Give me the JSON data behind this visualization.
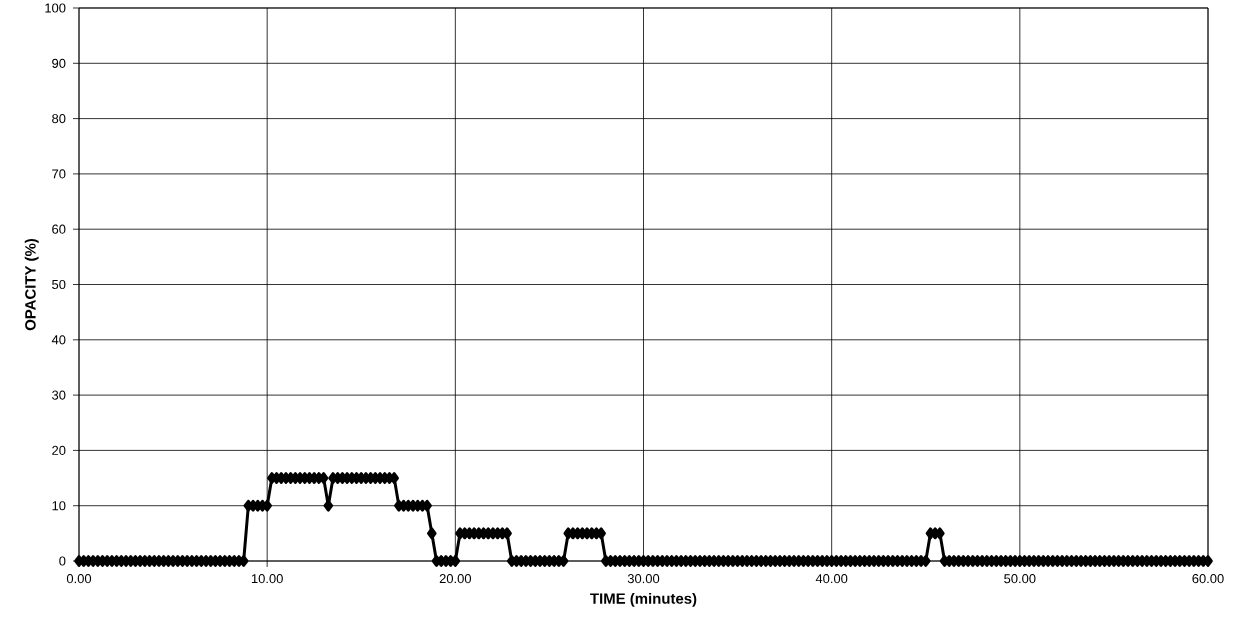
{
  "chart_data": {
    "type": "line",
    "xlabel": "TIME (minutes)",
    "ylabel": "OPACITY (%)",
    "xlim": [
      0,
      60
    ],
    "ylim": [
      0,
      100
    ],
    "xticks": [
      {
        "value": 0,
        "label": "0.00"
      },
      {
        "value": 10,
        "label": "10.00"
      },
      {
        "value": 20,
        "label": "20.00"
      },
      {
        "value": 30,
        "label": "30.00"
      },
      {
        "value": 40,
        "label": "40.00"
      },
      {
        "value": 50,
        "label": "50.00"
      },
      {
        "value": 60,
        "label": "60.00"
      }
    ],
    "yticks": [
      0,
      10,
      20,
      30,
      40,
      50,
      60,
      70,
      80,
      90,
      100
    ],
    "grid": true,
    "marker": "diamond",
    "line_style": "solid",
    "series": [
      {
        "color": "#000000",
        "x": [
          0,
          0.25,
          0.5,
          0.75,
          1,
          1.25,
          1.5,
          1.75,
          2,
          2.25,
          2.5,
          2.75,
          3,
          3.25,
          3.5,
          3.75,
          4,
          4.25,
          4.5,
          4.75,
          5,
          5.25,
          5.5,
          5.75,
          6,
          6.25,
          6.5,
          6.75,
          7,
          7.25,
          7.5,
          7.75,
          8,
          8.25,
          8.5,
          8.75,
          9,
          9.25,
          9.5,
          9.75,
          10,
          10.25,
          10.5,
          10.75,
          11,
          11.25,
          11.5,
          11.75,
          12,
          12.25,
          12.5,
          12.75,
          13,
          13.25,
          13.5,
          13.75,
          14,
          14.25,
          14.5,
          14.75,
          15,
          15.25,
          15.5,
          15.75,
          16,
          16.25,
          16.5,
          16.75,
          17,
          17.25,
          17.5,
          17.75,
          18,
          18.25,
          18.5,
          18.75,
          19,
          19.25,
          19.5,
          19.75,
          20,
          20.25,
          20.5,
          20.75,
          21,
          21.25,
          21.5,
          21.75,
          22,
          22.25,
          22.5,
          22.75,
          23,
          23.25,
          23.5,
          23.75,
          24,
          24.25,
          24.5,
          24.75,
          25,
          25.25,
          25.5,
          25.75,
          26,
          26.25,
          26.5,
          26.75,
          27,
          27.25,
          27.5,
          27.75,
          28,
          28.25,
          28.5,
          28.75,
          29,
          29.25,
          29.5,
          29.75,
          30,
          30.25,
          30.5,
          30.75,
          31,
          31.25,
          31.5,
          31.75,
          32,
          32.25,
          32.5,
          32.75,
          33,
          33.25,
          33.5,
          33.75,
          34,
          34.25,
          34.5,
          34.75,
          35,
          35.25,
          35.5,
          35.75,
          36,
          36.25,
          36.5,
          36.75,
          37,
          37.25,
          37.5,
          37.75,
          38,
          38.25,
          38.5,
          38.75,
          39,
          39.25,
          39.5,
          39.75,
          40,
          40.25,
          40.5,
          40.75,
          41,
          41.25,
          41.5,
          41.75,
          42,
          42.25,
          42.5,
          42.75,
          43,
          43.25,
          43.5,
          43.75,
          44,
          44.25,
          44.5,
          44.75,
          45,
          45.25,
          45.5,
          45.75,
          46,
          46.25,
          46.5,
          46.75,
          47,
          47.25,
          47.5,
          47.75,
          48,
          48.25,
          48.5,
          48.75,
          49,
          49.25,
          49.5,
          49.75,
          50,
          50.25,
          50.5,
          50.75,
          51,
          51.25,
          51.5,
          51.75,
          52,
          52.25,
          52.5,
          52.75,
          53,
          53.25,
          53.5,
          53.75,
          54,
          54.25,
          54.5,
          54.75,
          55,
          55.25,
          55.5,
          55.75,
          56,
          56.25,
          56.5,
          56.75,
          57,
          57.25,
          57.5,
          57.75,
          58,
          58.25,
          58.5,
          58.75,
          59,
          59.25,
          59.5,
          59.75,
          60
        ],
        "values": [
          0,
          0,
          0,
          0,
          0,
          0,
          0,
          0,
          0,
          0,
          0,
          0,
          0,
          0,
          0,
          0,
          0,
          0,
          0,
          0,
          0,
          0,
          0,
          0,
          0,
          0,
          0,
          0,
          0,
          0,
          0,
          0,
          0,
          0,
          0,
          0,
          10,
          10,
          10,
          10,
          10,
          15,
          15,
          15,
          15,
          15,
          15,
          15,
          15,
          15,
          15,
          15,
          15,
          10,
          15,
          15,
          15,
          15,
          15,
          15,
          15,
          15,
          15,
          15,
          15,
          15,
          15,
          15,
          10,
          10,
          10,
          10,
          10,
          10,
          10,
          5,
          0,
          0,
          0,
          0,
          0,
          5,
          5,
          5,
          5,
          5,
          5,
          5,
          5,
          5,
          5,
          5,
          0,
          0,
          0,
          0,
          0,
          0,
          0,
          0,
          0,
          0,
          0,
          0,
          5,
          5,
          5,
          5,
          5,
          5,
          5,
          5,
          0,
          0,
          0,
          0,
          0,
          0,
          0,
          0,
          0,
          0,
          0,
          0,
          0,
          0,
          0,
          0,
          0,
          0,
          0,
          0,
          0,
          0,
          0,
          0,
          0,
          0,
          0,
          0,
          0,
          0,
          0,
          0,
          0,
          0,
          0,
          0,
          0,
          0,
          0,
          0,
          0,
          0,
          0,
          0,
          0,
          0,
          0,
          0,
          0,
          0,
          0,
          0,
          0,
          0,
          0,
          0,
          0,
          0,
          0,
          0,
          0,
          0,
          0,
          0,
          0,
          0,
          0,
          0,
          0,
          5,
          5,
          5,
          0,
          0,
          0,
          0,
          0,
          0,
          0,
          0,
          0,
          0,
          0,
          0,
          0,
          0,
          0,
          0,
          0,
          0,
          0,
          0,
          0,
          0,
          0,
          0,
          0,
          0,
          0,
          0,
          0,
          0,
          0,
          0,
          0,
          0,
          0,
          0,
          0,
          0,
          0,
          0,
          0,
          0,
          0,
          0,
          0,
          0,
          0,
          0,
          0,
          0,
          0,
          0,
          0,
          0,
          0,
          0,
          0
        ]
      }
    ]
  }
}
